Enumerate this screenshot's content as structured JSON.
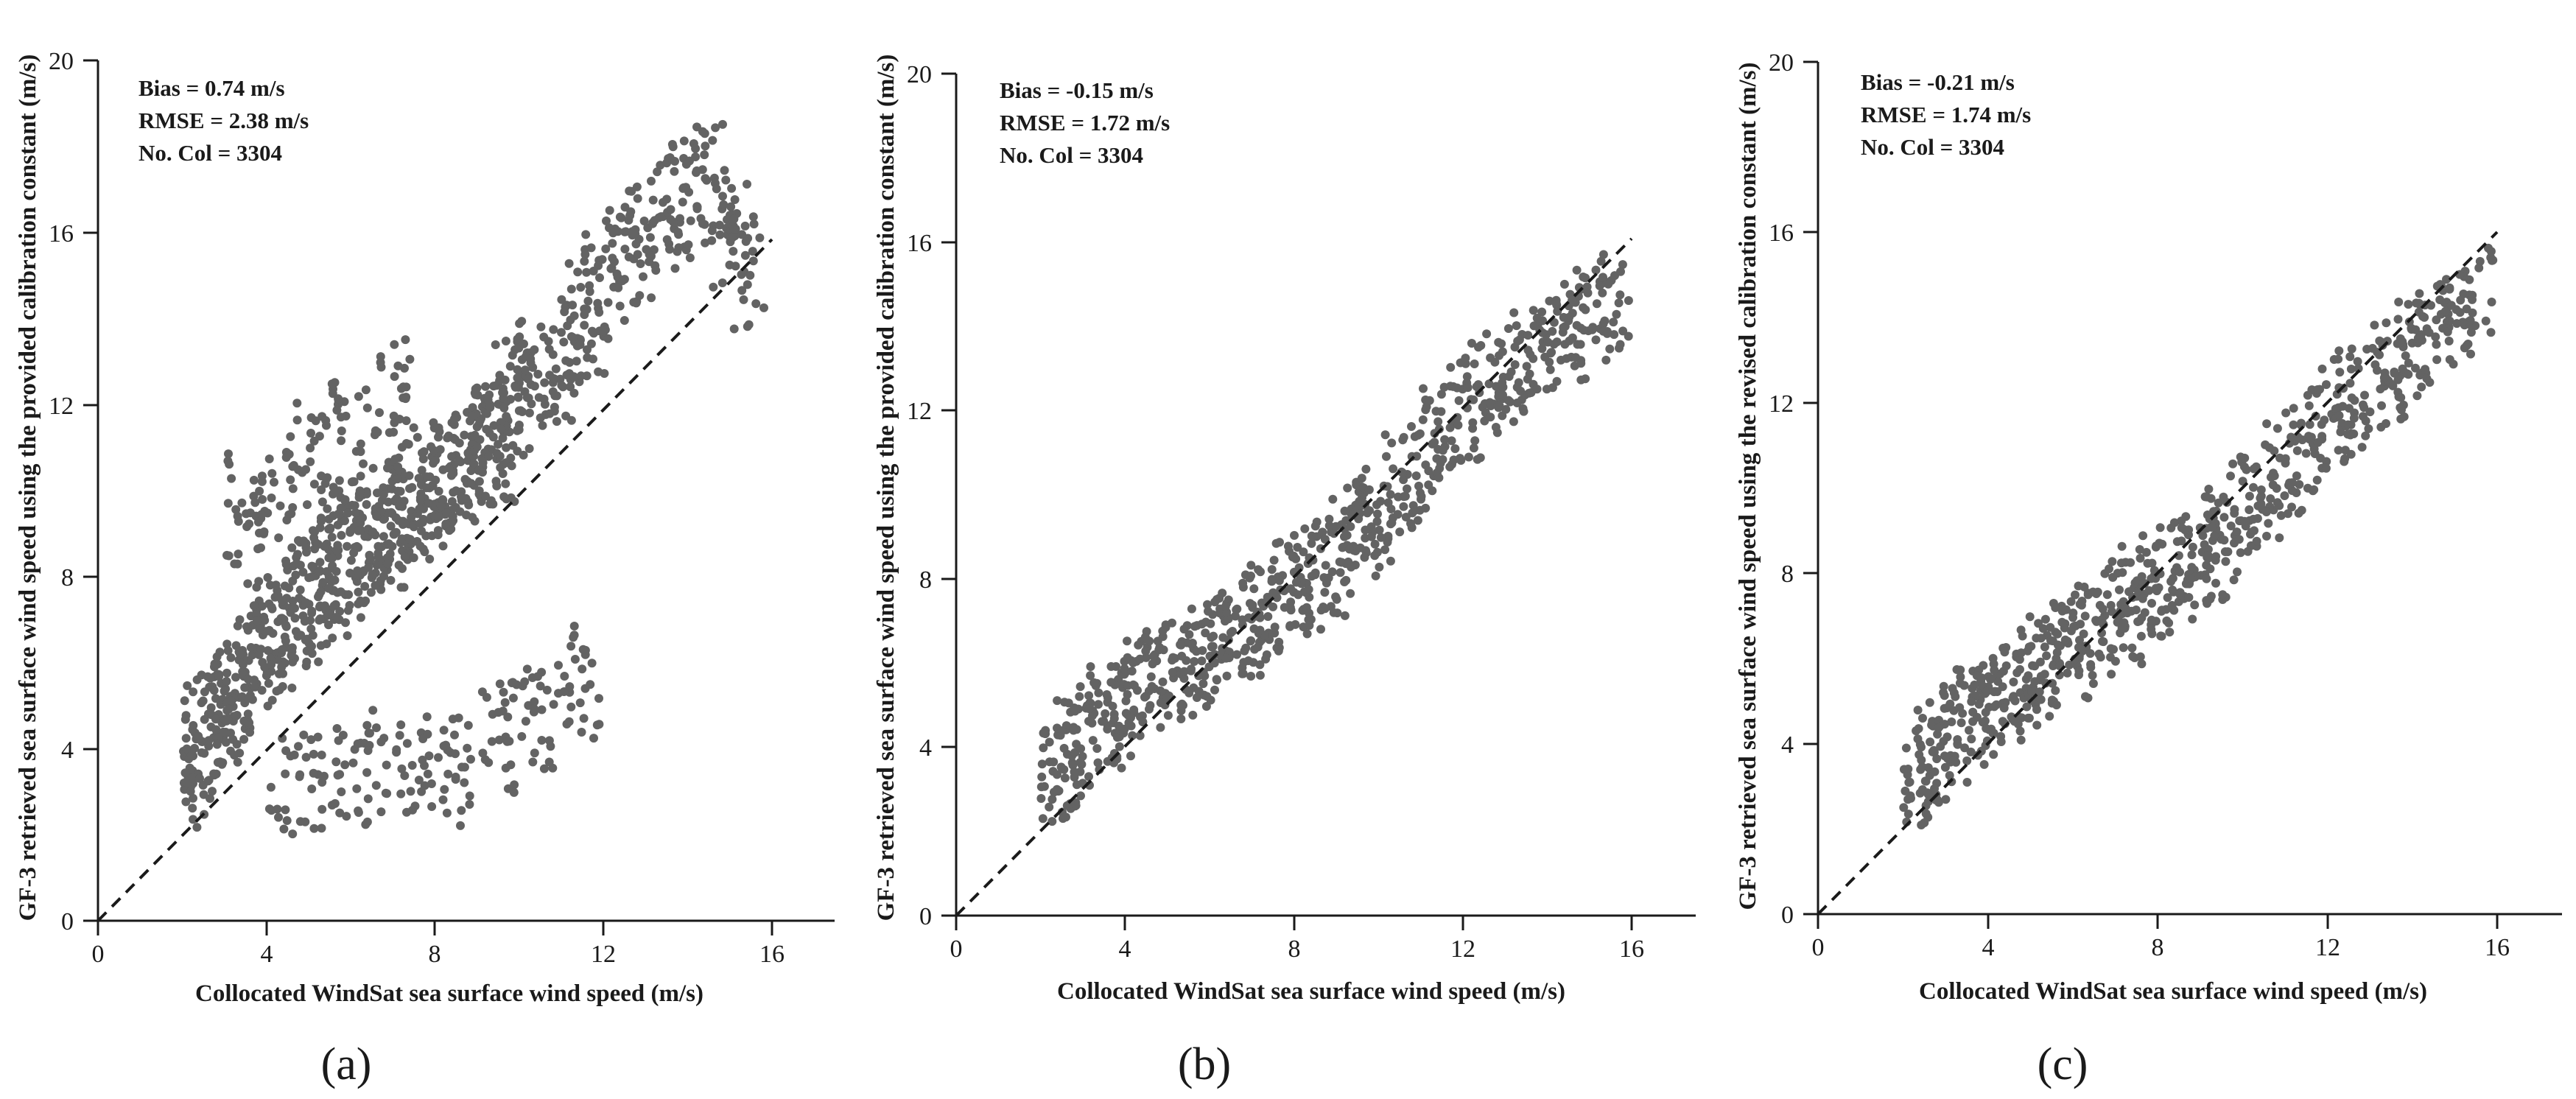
{
  "figure": {
    "point_color": "#636363",
    "axis_color": "#1a1a1a",
    "panels": [
      {
        "label": "(a)"
      },
      {
        "label": "(b)"
      },
      {
        "label": "(c)"
      }
    ]
  },
  "chart_data": [
    {
      "type": "scatter",
      "panel": "(a)",
      "xlabel": "Collocated WindSat sea surface wind speed (m/s)",
      "ylabel": "GF-3 retrieved sea surface wind speed using the provided calibration constant (m/s)",
      "xlim": [
        0,
        17.5
      ],
      "ylim": [
        0,
        20
      ],
      "xticks": [
        0,
        4,
        8,
        12,
        16
      ],
      "yticks": [
        0,
        4,
        8,
        12,
        16,
        20
      ],
      "reference_line": {
        "style": "dashed",
        "from": [
          0,
          0
        ],
        "to": [
          16,
          16
        ]
      },
      "stats": [
        "Bias = 0.74 m/s",
        "RMSE = 2.38 m/s",
        "No. Col = 3304"
      ],
      "n_points": 3304,
      "bias": 0.74,
      "rmse": 2.38,
      "notes": "Dense cloud roughly along y = x + 0.7 for x 2-10 m/s; wide spread 2-12 m/s; outlier cluster at high x (12-15.5) with y 11-20; low cluster near x 9-11, y 3-6",
      "x": [
        2.1,
        2.3,
        2.5,
        2.8,
        3.0,
        3.2,
        3.5,
        3.8,
        4.0,
        4.2,
        4.5,
        4.8,
        5.0,
        5.3,
        5.5,
        5.8,
        6.0,
        6.3,
        6.5,
        6.8,
        7.0,
        7.3,
        7.5,
        7.8,
        8.0,
        8.3,
        8.5,
        8.8,
        9.0,
        9.3,
        9.5,
        9.8,
        10.0,
        10.4,
        10.8,
        11.2,
        11.6,
        12.0,
        12.5,
        13.0,
        13.5,
        14.0,
        14.5,
        15.0,
        15.4,
        4.5,
        5.5,
        6.5,
        7.5,
        8.5,
        9.5,
        10.5,
        11.5,
        3.5,
        4.2,
        5.0,
        6.0,
        7.0
      ],
      "y": [
        3.8,
        3.5,
        4.4,
        4.6,
        5.0,
        5.1,
        5.6,
        6.2,
        6.5,
        6.8,
        7.0,
        7.4,
        7.6,
        7.9,
        8.0,
        8.4,
        8.7,
        8.8,
        9.0,
        9.3,
        9.1,
        9.6,
        9.8,
        10.1,
        10.0,
        10.4,
        10.6,
        10.9,
        11.0,
        11.2,
        11.0,
        12.1,
        12.3,
        12.8,
        13.0,
        13.4,
        14.0,
        14.8,
        15.2,
        15.8,
        16.4,
        16.8,
        17.2,
        16.0,
        15.0,
        3.0,
        3.2,
        3.5,
        3.8,
        3.4,
        4.2,
        4.8,
        5.5,
        9.5,
        10.0,
        10.8,
        11.4,
        12.2
      ],
      "title": ""
    },
    {
      "type": "scatter",
      "panel": "(b)",
      "xlabel": "Collocated WindSat sea surface wind speed (m/s)",
      "ylabel": "GF-3 retrieved sea surface wind speed using the provided calibration constant (m/s)",
      "xlim": [
        0,
        17.5
      ],
      "ylim": [
        0,
        20
      ],
      "xticks": [
        0,
        4,
        8,
        12,
        16
      ],
      "yticks": [
        0,
        4,
        8,
        12,
        16,
        20
      ],
      "reference_line": {
        "style": "dashed",
        "from": [
          0,
          0
        ],
        "to": [
          16,
          16
        ]
      },
      "stats": [
        "Bias = -0.15 m/s",
        "RMSE = 1.72 m/s",
        "No. Col = 3304"
      ],
      "n_points": 3304,
      "bias": -0.15,
      "rmse": 1.72,
      "notes": "Points cluster around y = x with slight negative bias; high-speed points 12-15.8 m/s fall around y 10-16",
      "x": [
        2.1,
        2.4,
        2.8,
        3.2,
        3.6,
        4.0,
        4.4,
        4.8,
        5.2,
        5.6,
        6.0,
        6.4,
        6.8,
        7.2,
        7.6,
        8.0,
        8.4,
        8.8,
        9.2,
        9.6,
        10.0,
        10.5,
        11.0,
        11.5,
        12.0,
        12.5,
        13.0,
        13.5,
        14.0,
        14.5,
        15.0,
        15.5
      ],
      "y": [
        3.2,
        3.4,
        3.9,
        4.3,
        4.7,
        5.0,
        5.3,
        5.6,
        5.9,
        6.1,
        6.4,
        6.6,
        6.9,
        7.1,
        7.4,
        7.7,
        8.0,
        8.3,
        8.7,
        9.1,
        9.6,
        10.2,
        10.8,
        11.4,
        12.0,
        12.4,
        12.8,
        13.2,
        13.6,
        13.9,
        14.2,
        14.6
      ],
      "title": ""
    },
    {
      "type": "scatter",
      "panel": "(c)",
      "xlabel": "Collocated WindSat sea surface wind speed (m/s)",
      "ylabel": "GF-3 retrieved sea surface wind speed using the revised calibration constant (m/s)",
      "xlim": [
        0,
        17.5
      ],
      "ylim": [
        0,
        20
      ],
      "xticks": [
        0,
        4,
        8,
        12,
        16
      ],
      "yticks": [
        0,
        4,
        8,
        12,
        16,
        20
      ],
      "reference_line": {
        "style": "dashed",
        "from": [
          0,
          0
        ],
        "to": [
          16,
          16
        ]
      },
      "stats": [
        "Bias = -0.21 m/s",
        "RMSE = 1.74 m/s",
        "No. Col = 3304"
      ],
      "n_points": 3304,
      "bias": -0.21,
      "rmse": 1.74,
      "notes": "Points cluster around y = x with slight negative bias; high-speed points 12-15.8 m/s fall around y 10-16",
      "x": [
        2.1,
        2.4,
        2.8,
        3.2,
        3.6,
        4.0,
        4.4,
        4.8,
        5.2,
        5.6,
        6.0,
        6.4,
        6.8,
        7.2,
        7.6,
        8.0,
        8.4,
        8.8,
        9.2,
        9.6,
        10.0,
        10.5,
        11.0,
        11.5,
        12.0,
        12.5,
        13.0,
        13.5,
        14.0,
        14.5,
        15.0,
        15.5
      ],
      "y": [
        3.3,
        3.5,
        3.9,
        4.3,
        4.6,
        4.9,
        5.2,
        5.5,
        5.8,
        6.0,
        6.3,
        6.6,
        6.8,
        7.1,
        7.4,
        7.7,
        8.0,
        8.3,
        8.6,
        9.0,
        9.5,
        10.0,
        10.6,
        11.1,
        11.6,
        12.0,
        12.4,
        12.8,
        13.2,
        13.6,
        14.0,
        14.4
      ],
      "title": ""
    }
  ]
}
